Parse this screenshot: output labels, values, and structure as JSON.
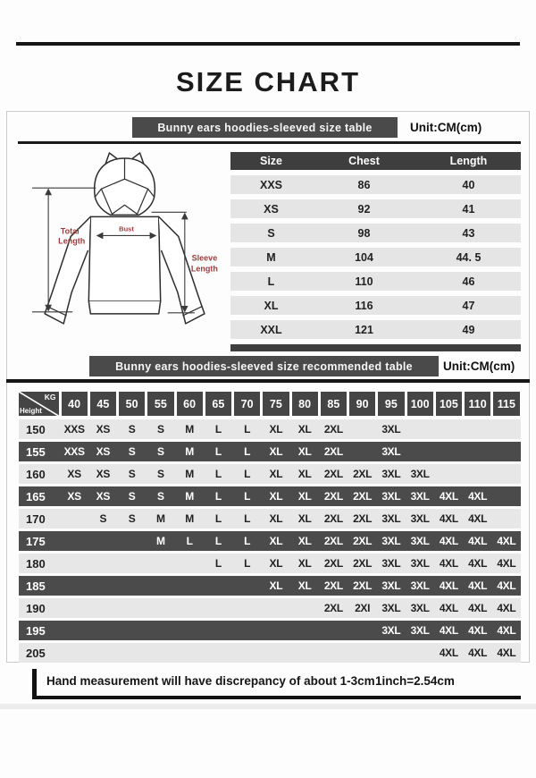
{
  "page": {
    "title": "SIZE CHART"
  },
  "section1": {
    "banner": "Bunny ears hoodies-sleeved size table",
    "unit": "Unit:CM(cm)",
    "diagram_labels": {
      "total_1": "Total",
      "total_2": "Length",
      "bust": "Bust",
      "sleeve_1": "Sleeve",
      "sleeve_2": "Length"
    },
    "size_table": {
      "columns": [
        "Size",
        "Chest",
        "Length"
      ],
      "rows": [
        [
          "XXS",
          "86",
          "40"
        ],
        [
          "XS",
          "92",
          "41"
        ],
        [
          "S",
          "98",
          "43"
        ],
        [
          "M",
          "104",
          "44. 5"
        ],
        [
          "L",
          "110",
          "46"
        ],
        [
          "XL",
          "116",
          "47"
        ],
        [
          "XXL",
          "121",
          "49"
        ]
      ]
    }
  },
  "section2": {
    "banner": "Bunny ears hoodies-sleeved size recommended table",
    "unit": "Unit:CM(cm)",
    "matrix": {
      "corner_top": "KG",
      "corner_bottom": "Height",
      "weight_columns": [
        "40",
        "45",
        "50",
        "55",
        "60",
        "65",
        "70",
        "75",
        "80",
        "85",
        "90",
        "95",
        "100",
        "105",
        "110",
        "115"
      ],
      "rows": [
        {
          "height": "150",
          "values": [
            "XXS",
            "XS",
            "S",
            "S",
            "M",
            "L",
            "L",
            "XL",
            "XL",
            "2XL",
            "",
            "3XL",
            "",
            "",
            "",
            ""
          ]
        },
        {
          "height": "155",
          "values": [
            "XXS",
            "XS",
            "S",
            "S",
            "M",
            "L",
            "L",
            "XL",
            "XL",
            "2XL",
            "",
            "3XL",
            "",
            "",
            "",
            ""
          ]
        },
        {
          "height": "160",
          "values": [
            "XS",
            "XS",
            "S",
            "S",
            "M",
            "L",
            "L",
            "XL",
            "XL",
            "2XL",
            "2XL",
            "3XL",
            "3XL",
            "",
            "",
            ""
          ]
        },
        {
          "height": "165",
          "values": [
            "XS",
            "XS",
            "S",
            "S",
            "M",
            "L",
            "L",
            "XL",
            "XL",
            "2XL",
            "2XL",
            "3XL",
            "3XL",
            "4XL",
            "4XL",
            ""
          ]
        },
        {
          "height": "170",
          "values": [
            "",
            "S",
            "S",
            "M",
            "M",
            "L",
            "L",
            "XL",
            "XL",
            "2XL",
            "2XL",
            "3XL",
            "3XL",
            "4XL",
            "4XL",
            ""
          ]
        },
        {
          "height": "175",
          "values": [
            "",
            "",
            "",
            "M",
            "L",
            "L",
            "L",
            "XL",
            "XL",
            "2XL",
            "2XL",
            "3XL",
            "3XL",
            "4XL",
            "4XL",
            "4XL"
          ]
        },
        {
          "height": "180",
          "values": [
            "",
            "",
            "",
            "",
            "",
            "L",
            "L",
            "XL",
            "XL",
            "2XL",
            "2XL",
            "3XL",
            "3XL",
            "4XL",
            "4XL",
            "4XL"
          ]
        },
        {
          "height": "185",
          "values": [
            "",
            "",
            "",
            "",
            "",
            "",
            "",
            "XL",
            "XL",
            "2XL",
            "2XL",
            "3XL",
            "3XL",
            "4XL",
            "4XL",
            "4XL"
          ]
        },
        {
          "height": "190",
          "values": [
            "",
            "",
            "",
            "",
            "",
            "",
            "",
            "",
            "",
            "2XL",
            "2XI",
            "3XL",
            "3XL",
            "4XL",
            "4XL",
            "4XL"
          ]
        },
        {
          "height": "195",
          "values": [
            "",
            "",
            "",
            "",
            "",
            "",
            "",
            "",
            "",
            "",
            "",
            "3XL",
            "3XL",
            "4XL",
            "4XL",
            "4XL"
          ]
        },
        {
          "height": "205",
          "values": [
            "",
            "",
            "",
            "",
            "",
            "",
            "",
            "",
            "",
            "",
            "",
            "",
            "",
            "4XL",
            "4XL",
            "4XL"
          ]
        }
      ]
    }
  },
  "footer": {
    "note": "Hand measurement will have discrepancy of about  1-3cm",
    "conversion": "1inch=2.54cm"
  },
  "colors": {
    "banner_dark": "#4a4a4a",
    "table_header_dark": "#3e3e3e",
    "row_light": "#e7e7e7",
    "row_dark": "#4b4b4b",
    "label_red": "#9b3c3c",
    "rule_black": "#161616"
  }
}
